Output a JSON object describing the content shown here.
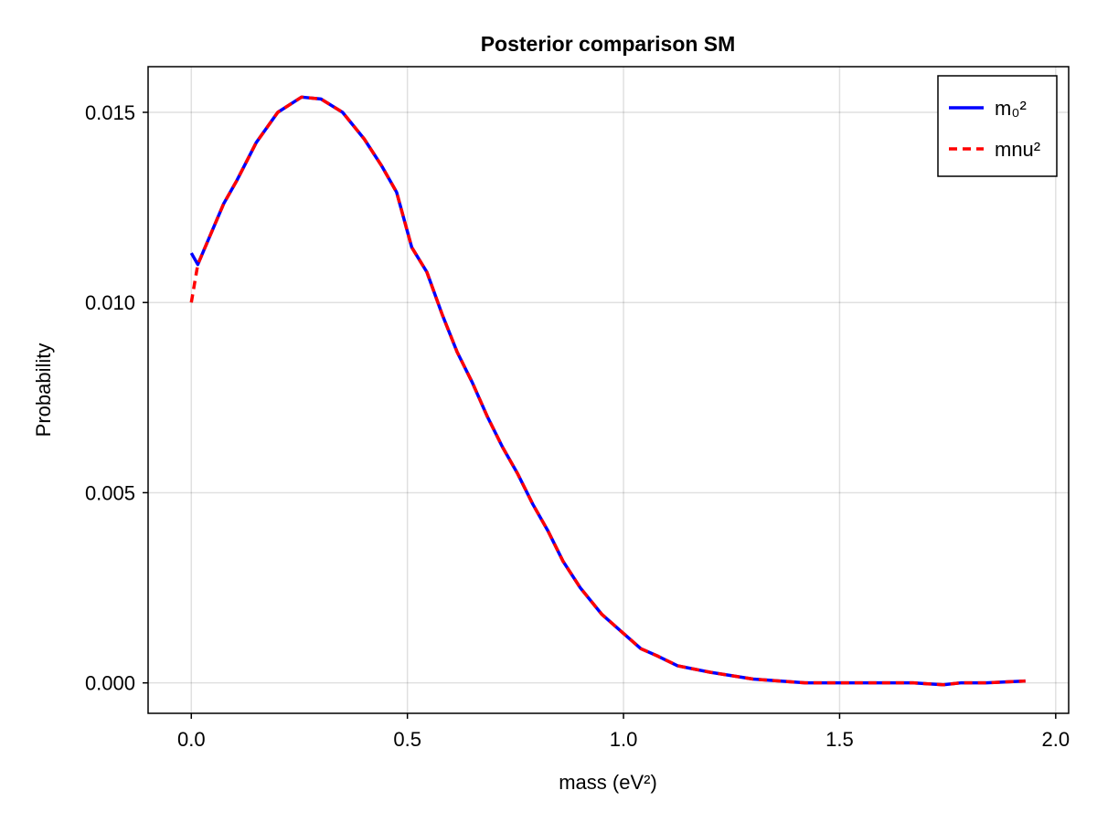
{
  "chart_data": {
    "type": "line",
    "title": "Posterior comparison SM",
    "xlabel": "mass (eV²)",
    "ylabel": "Probability",
    "xlim": [
      -0.1,
      2.03
    ],
    "ylim": [
      -0.0008,
      0.0162
    ],
    "xticks": [
      0.0,
      0.5,
      1.0,
      1.5,
      2.0
    ],
    "xtick_labels": [
      "0.0",
      "0.5",
      "1.0",
      "1.5",
      "2.0"
    ],
    "yticks": [
      0.0,
      0.005,
      0.01,
      0.015
    ],
    "ytick_labels": [
      "0.000",
      "0.005",
      "0.010",
      "0.015"
    ],
    "grid": true,
    "legend_position": "top-right",
    "series": [
      {
        "name": "m₀²",
        "color": "#0000ff",
        "style": "solid",
        "x": [
          0.0,
          0.015,
          0.045,
          0.075,
          0.105,
          0.15,
          0.2,
          0.255,
          0.3,
          0.35,
          0.4,
          0.44,
          0.475,
          0.51,
          0.545,
          0.58,
          0.615,
          0.65,
          0.685,
          0.72,
          0.755,
          0.79,
          0.825,
          0.86,
          0.9,
          0.95,
          1.0,
          1.04,
          1.08,
          1.125,
          1.2,
          1.3,
          1.42,
          1.5,
          1.58,
          1.67,
          1.74,
          1.78,
          1.84,
          1.93
        ],
        "y": [
          0.0113,
          0.011,
          0.0118,
          0.0126,
          0.0132,
          0.0142,
          0.015,
          0.0154,
          0.01535,
          0.015,
          0.0143,
          0.0136,
          0.0129,
          0.01145,
          0.0108,
          0.0097,
          0.0087,
          0.0079,
          0.007,
          0.0062,
          0.0055,
          0.0047,
          0.004,
          0.0032,
          0.0025,
          0.0018,
          0.0013,
          0.0009,
          0.0007,
          0.00045,
          0.00028,
          0.0001,
          0.0,
          0.0,
          0.0,
          0.0,
          -5e-05,
          0.0,
          0.0,
          5e-05
        ]
      },
      {
        "name": "mnu²",
        "color": "#ff0000",
        "style": "dashed",
        "x": [
          0.0,
          0.015,
          0.045,
          0.075,
          0.105,
          0.15,
          0.2,
          0.255,
          0.3,
          0.35,
          0.4,
          0.44,
          0.475,
          0.51,
          0.545,
          0.58,
          0.615,
          0.65,
          0.685,
          0.72,
          0.755,
          0.79,
          0.825,
          0.86,
          0.9,
          0.95,
          1.0,
          1.04,
          1.08,
          1.125,
          1.2,
          1.3,
          1.42,
          1.5,
          1.58,
          1.67,
          1.74,
          1.78,
          1.84,
          1.93
        ],
        "y": [
          0.01,
          0.011,
          0.0118,
          0.0126,
          0.0132,
          0.0142,
          0.015,
          0.0154,
          0.01535,
          0.015,
          0.0143,
          0.0136,
          0.0129,
          0.01145,
          0.0108,
          0.0097,
          0.0087,
          0.0079,
          0.007,
          0.0062,
          0.0055,
          0.0047,
          0.004,
          0.0032,
          0.0025,
          0.0018,
          0.0013,
          0.0009,
          0.0007,
          0.00045,
          0.00028,
          0.0001,
          0.0,
          0.0,
          0.0,
          0.0,
          -5e-05,
          0.0,
          0.0,
          5e-05
        ]
      }
    ]
  }
}
